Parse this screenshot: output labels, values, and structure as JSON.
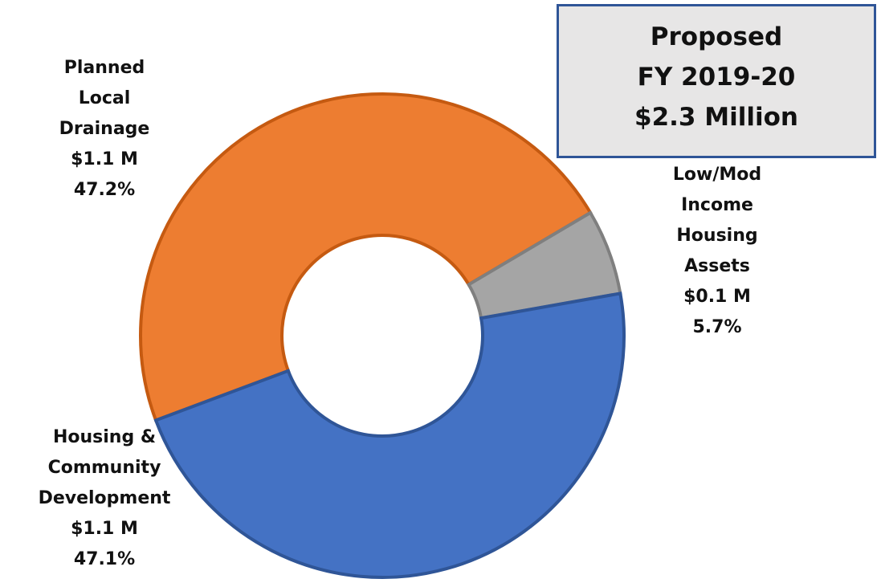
{
  "chart_data": {
    "type": "donut",
    "title": [
      "Proposed",
      "FY 2019-20",
      "$2.3 Million"
    ],
    "categories": [
      "Planned\nLocal\nDrainage",
      "Low/Mod\nIncome\nHousing\nAssets",
      "Housing &\nCommunity\nDevelopment"
    ],
    "amount_labels": [
      "$1.1 M",
      "$0.1 M",
      "$1.1 M"
    ],
    "values": [
      47.2,
      5.7,
      47.1
    ],
    "value_labels": [
      "47.2%",
      "5.7%",
      "47.1%"
    ],
    "colors": [
      "#ED7D31",
      "#A5A5A5",
      "#4472C4"
    ]
  }
}
